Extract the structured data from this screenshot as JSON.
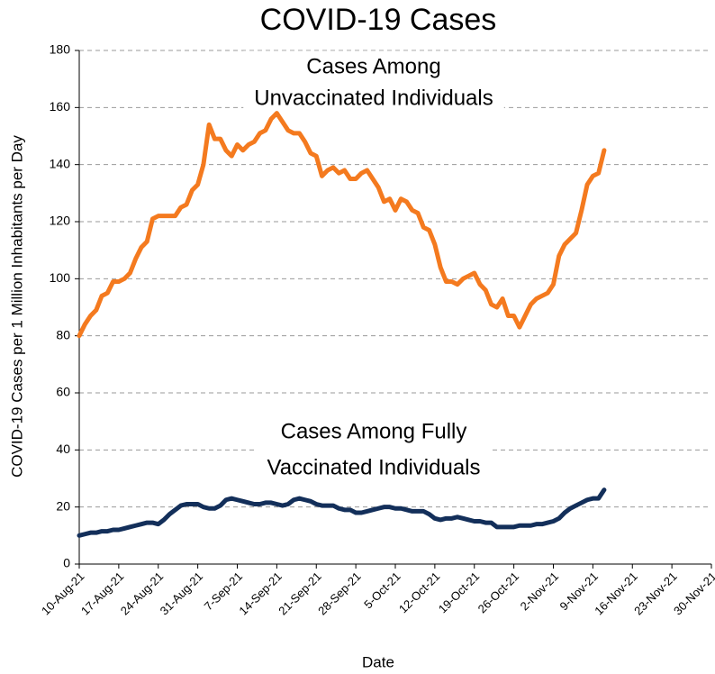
{
  "chart_data": {
    "type": "line",
    "title": "COVID-19 Cases",
    "x_label": "Date",
    "y_label": "COVID-19 Cases per 1 Million Inhabitants per Day",
    "annotations": [
      {
        "lines": [
          "Cases Among",
          "Unvaccinated Individuals"
        ]
      },
      {
        "lines": [
          "Cases Among Fully",
          "Vaccinated Individuals"
        ]
      }
    ],
    "x": [
      "2021-08-10",
      "2021-08-11",
      "2021-08-12",
      "2021-08-13",
      "2021-08-14",
      "2021-08-15",
      "2021-08-16",
      "2021-08-17",
      "2021-08-18",
      "2021-08-19",
      "2021-08-20",
      "2021-08-21",
      "2021-08-22",
      "2021-08-23",
      "2021-08-24",
      "2021-08-25",
      "2021-08-26",
      "2021-08-27",
      "2021-08-28",
      "2021-08-29",
      "2021-08-30",
      "2021-08-31",
      "2021-09-01",
      "2021-09-02",
      "2021-09-03",
      "2021-09-04",
      "2021-09-05",
      "2021-09-06",
      "2021-09-07",
      "2021-09-08",
      "2021-09-09",
      "2021-09-10",
      "2021-09-11",
      "2021-09-12",
      "2021-09-13",
      "2021-09-14",
      "2021-09-15",
      "2021-09-16",
      "2021-09-17",
      "2021-09-18",
      "2021-09-19",
      "2021-09-20",
      "2021-09-21",
      "2021-09-22",
      "2021-09-23",
      "2021-09-24",
      "2021-09-25",
      "2021-09-26",
      "2021-09-27",
      "2021-09-28",
      "2021-09-29",
      "2021-09-30",
      "2021-10-01",
      "2021-10-02",
      "2021-10-03",
      "2021-10-04",
      "2021-10-05",
      "2021-10-06",
      "2021-10-07",
      "2021-10-08",
      "2021-10-09",
      "2021-10-10",
      "2021-10-11",
      "2021-10-12",
      "2021-10-13",
      "2021-10-14",
      "2021-10-15",
      "2021-10-16",
      "2021-10-17",
      "2021-10-18",
      "2021-10-19",
      "2021-10-20",
      "2021-10-21",
      "2021-10-22",
      "2021-10-23",
      "2021-10-24",
      "2021-10-25",
      "2021-10-26",
      "2021-10-27",
      "2021-10-28",
      "2021-10-29",
      "2021-10-30",
      "2021-10-31",
      "2021-11-01",
      "2021-11-02",
      "2021-11-03",
      "2021-11-04",
      "2021-11-05",
      "2021-11-06",
      "2021-11-07",
      "2021-11-08",
      "2021-11-09",
      "2021-11-10",
      "2021-11-11"
    ],
    "series": [
      {
        "name": "Cases Among Unvaccinated Individuals",
        "color": "#f47a1f",
        "values": [
          80,
          84,
          87,
          89,
          94,
          95,
          99,
          99,
          100,
          102,
          107,
          111,
          113,
          121,
          122,
          122,
          122,
          122,
          125,
          126,
          131,
          133,
          140,
          154,
          149,
          149,
          145,
          143,
          147,
          145,
          147,
          148,
          151,
          152,
          156,
          158,
          155,
          152,
          151,
          151,
          148,
          144,
          143,
          136,
          138,
          139,
          137,
          138,
          135,
          135,
          137,
          138,
          135,
          132,
          127,
          128,
          124,
          128,
          127,
          124,
          123,
          118,
          117,
          112,
          104,
          99,
          99,
          98,
          100,
          101,
          102,
          98,
          96,
          91,
          90,
          93,
          87,
          87,
          83,
          87,
          91,
          93,
          94,
          95,
          98,
          108,
          112,
          114,
          116,
          124,
          133,
          136,
          137,
          145
        ]
      },
      {
        "name": "Cases Among Fully Vaccinated Individuals",
        "color": "#132f5a",
        "values": [
          10,
          10.5,
          11,
          11,
          11.5,
          11.5,
          12,
          12,
          12.5,
          13,
          13.5,
          14,
          14.5,
          14.5,
          14,
          15.5,
          17.5,
          19,
          20.5,
          21,
          21,
          21,
          20,
          19.5,
          19.5,
          20.5,
          22.5,
          23,
          22.5,
          22,
          21.5,
          21,
          21,
          21.5,
          21.5,
          21,
          20.5,
          21,
          22.5,
          23,
          22.5,
          22,
          21,
          20.5,
          20.5,
          20.5,
          19.5,
          19,
          19,
          18,
          18,
          18.5,
          19,
          19.5,
          20,
          20,
          19.5,
          19.5,
          19,
          18.5,
          18.5,
          18.5,
          17.5,
          16,
          15.5,
          16,
          16,
          16.5,
          16,
          15.5,
          15,
          15,
          14.5,
          14.5,
          13,
          13,
          13,
          13,
          13.5,
          13.5,
          13.5,
          14,
          14,
          14.5,
          15,
          16,
          18,
          19.5,
          20.5,
          21.5,
          22.5,
          23,
          23,
          26
        ]
      }
    ],
    "xlim": [
      "2021-08-10",
      "2021-11-30"
    ],
    "xticks": [
      {
        "value": "2021-08-10",
        "label": "10-Aug-21"
      },
      {
        "value": "2021-08-17",
        "label": "17-Aug-21"
      },
      {
        "value": "2021-08-24",
        "label": "24-Aug-21"
      },
      {
        "value": "2021-08-31",
        "label": "31-Aug-21"
      },
      {
        "value": "2021-09-07",
        "label": "7-Sep-21"
      },
      {
        "value": "2021-09-14",
        "label": "14-Sep-21"
      },
      {
        "value": "2021-09-21",
        "label": "21-Sep-21"
      },
      {
        "value": "2021-09-28",
        "label": "28-Sep-21"
      },
      {
        "value": "2021-10-05",
        "label": "5-Oct-21"
      },
      {
        "value": "2021-10-12",
        "label": "12-Oct-21"
      },
      {
        "value": "2021-10-19",
        "label": "19-Oct-21"
      },
      {
        "value": "2021-10-26",
        "label": "26-Oct-21"
      },
      {
        "value": "2021-11-02",
        "label": "2-Nov-21"
      },
      {
        "value": "2021-11-09",
        "label": "9-Nov-21"
      },
      {
        "value": "2021-11-16",
        "label": "16-Nov-21"
      },
      {
        "value": "2021-11-23",
        "label": "23-Nov-21"
      },
      {
        "value": "2021-11-30",
        "label": "30-Nov-21"
      }
    ],
    "ylim": [
      0,
      180
    ],
    "yticks": [
      0,
      20,
      40,
      60,
      80,
      100,
      120,
      140,
      160,
      180
    ],
    "grid": true
  }
}
